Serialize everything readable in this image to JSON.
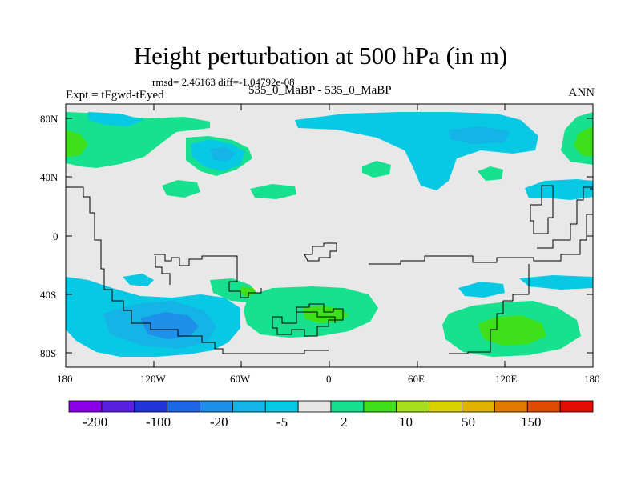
{
  "title": "Height perturbation at 500 hPa (in m)",
  "stats_line": "rmsd= 2.46163 diff=-1.04792e-08",
  "left_label": "Expt = tFgwd-tEyed",
  "center_label": "535_0_MaBP - 535_0_MaBP",
  "right_label": "ANN",
  "axes": {
    "y_ticks": [
      "80N",
      "40N",
      "0",
      "40S",
      "80S"
    ],
    "x_ticks": [
      "180",
      "120W",
      "60W",
      "0",
      "60E",
      "120E",
      "180"
    ]
  },
  "colorbar": {
    "colors": [
      "#8a00e6",
      "#5b1fe0",
      "#2233d9",
      "#1f66e6",
      "#1e90ea",
      "#14b4e6",
      "#07c9e3",
      "#e6e6e6",
      "#17e08f",
      "#3fe01a",
      "#a6e01a",
      "#d9d200",
      "#e0b200",
      "#e07a00",
      "#e04a00",
      "#e00d00"
    ],
    "labels": [
      "-200",
      "-100",
      "-20",
      "-5",
      "2",
      "10",
      "50",
      "150"
    ]
  },
  "chart_data": {
    "type": "filled-contour-map",
    "title": "Height perturbation at 500 hPa (in m)",
    "variable": "geopotential height perturbation",
    "units": "m",
    "level": "500 hPa",
    "season": "ANN",
    "rmsd": 2.46163,
    "diff": -1.04792e-08,
    "x_range": [
      -180,
      180
    ],
    "y_range": [
      -90,
      90
    ],
    "legend_position": "bottom"
  }
}
